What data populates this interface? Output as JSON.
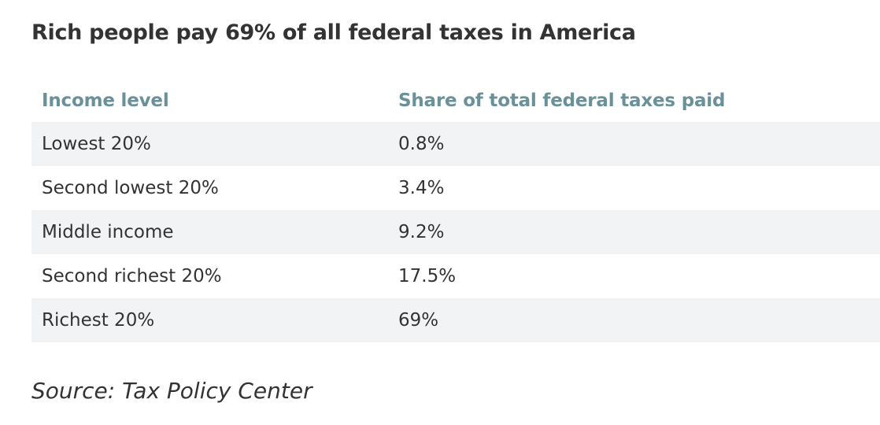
{
  "title": "Rich people pay 69% of all federal taxes in America",
  "chart_data": {
    "type": "table",
    "title": "Rich people pay 69% of all federal taxes in America",
    "columns": [
      "Income level",
      "Share of total federal taxes paid"
    ],
    "rows": [
      [
        "Lowest 20%",
        "0.8%"
      ],
      [
        "Second lowest 20%",
        "3.4%"
      ],
      [
        "Middle income",
        "9.2%"
      ],
      [
        "Second richest 20%",
        "17.5%"
      ],
      [
        "Richest 20%",
        "69%"
      ]
    ],
    "header_color": "#6a9199",
    "stripe_color": "#f2f3f5"
  },
  "source": "Source: Tax Policy Center"
}
